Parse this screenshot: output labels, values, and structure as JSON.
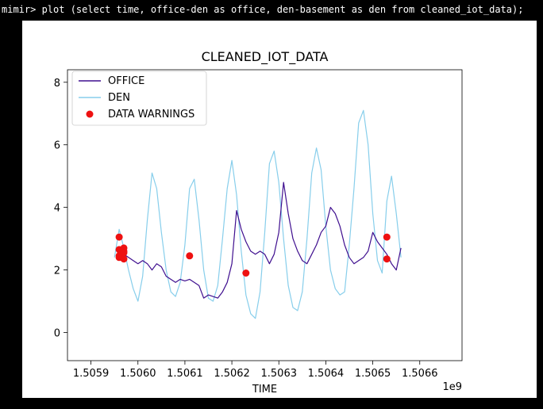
{
  "terminal": {
    "command_line": "mimir> plot (select time, office-den as office, den-basement as den from cleaned_iot_data);"
  },
  "colors": {
    "office": "#3f0f8f",
    "den": "#87ceeb",
    "warnings": "#ee1111",
    "terminal_bg": "#000000",
    "terminal_fg": "#ffffff"
  },
  "chart_data": {
    "type": "line",
    "title": "CLEANED_IOT_DATA",
    "xlabel": "TIME",
    "ylabel": "",
    "x_offset_label": "1e9",
    "xlim": [
      1.50585,
      1.50669
    ],
    "ylim": [
      -0.9,
      8.4
    ],
    "xticks": [
      "1.5059",
      "1.5060",
      "1.5061",
      "1.5062",
      "1.5063",
      "1.5064",
      "1.5065",
      "1.5066"
    ],
    "xtick_values": [
      1.5059,
      1.506,
      1.5061,
      1.5062,
      1.5063,
      1.5064,
      1.5065,
      1.5066
    ],
    "yticks": [
      "0",
      "2",
      "4",
      "6",
      "8"
    ],
    "ytick_values": [
      0,
      2,
      4,
      6,
      8
    ],
    "grid": false,
    "legend_position": "top-left",
    "series": [
      {
        "name": "OFFICE",
        "kind": "line",
        "x": [
          1.50596,
          1.50597,
          1.50598,
          1.50599,
          1.506,
          1.50601,
          1.50602,
          1.50603,
          1.50604,
          1.50605,
          1.50606,
          1.50607,
          1.50608,
          1.50609,
          1.5061,
          1.50611,
          1.50612,
          1.50613,
          1.50614,
          1.50615,
          1.50616,
          1.50617,
          1.50618,
          1.50619,
          1.5062,
          1.50621,
          1.50622,
          1.50623,
          1.50624,
          1.50625,
          1.50626,
          1.50627,
          1.50628,
          1.50629,
          1.5063,
          1.50631,
          1.50632,
          1.50633,
          1.50634,
          1.50635,
          1.50636,
          1.50637,
          1.50638,
          1.50639,
          1.5064,
          1.50641,
          1.50642,
          1.50643,
          1.50644,
          1.50645,
          1.50646,
          1.50647,
          1.50648,
          1.50649,
          1.5065,
          1.50651,
          1.50652,
          1.50653,
          1.50654,
          1.50655,
          1.50656
        ],
        "y": [
          2.7,
          2.5,
          2.4,
          2.3,
          2.2,
          2.3,
          2.2,
          2.0,
          2.2,
          2.1,
          1.8,
          1.7,
          1.6,
          1.7,
          1.65,
          1.7,
          1.6,
          1.5,
          1.1,
          1.2,
          1.15,
          1.1,
          1.3,
          1.6,
          2.2,
          3.9,
          3.3,
          2.9,
          2.6,
          2.5,
          2.6,
          2.5,
          2.2,
          2.5,
          3.2,
          4.8,
          3.8,
          3.0,
          2.6,
          2.3,
          2.2,
          2.5,
          2.8,
          3.2,
          3.4,
          4.0,
          3.8,
          3.4,
          2.8,
          2.4,
          2.2,
          2.3,
          2.4,
          2.6,
          3.2,
          2.9,
          2.7,
          2.5,
          2.2,
          2.0,
          2.7
        ]
      },
      {
        "name": "DEN",
        "kind": "line",
        "x": [
          1.50595,
          1.50596,
          1.50597,
          1.50598,
          1.50599,
          1.506,
          1.50601,
          1.50602,
          1.50603,
          1.50604,
          1.50605,
          1.50606,
          1.50607,
          1.50608,
          1.50609,
          1.5061,
          1.50611,
          1.50612,
          1.50613,
          1.50614,
          1.50615,
          1.50616,
          1.50617,
          1.50618,
          1.50619,
          1.5062,
          1.50621,
          1.50622,
          1.50623,
          1.50624,
          1.50625,
          1.50626,
          1.50627,
          1.50628,
          1.50629,
          1.5063,
          1.50631,
          1.50632,
          1.50633,
          1.50634,
          1.50635,
          1.50636,
          1.50637,
          1.50638,
          1.50639,
          1.5064,
          1.50641,
          1.50642,
          1.50643,
          1.50644,
          1.50645,
          1.50646,
          1.50647,
          1.50648,
          1.50649,
          1.5065,
          1.50651,
          1.50652,
          1.50653,
          1.50654,
          1.50655,
          1.50656
        ],
        "y": [
          2.4,
          3.3,
          2.7,
          2.0,
          1.4,
          1.0,
          1.8,
          3.6,
          5.1,
          4.6,
          3.2,
          2.0,
          1.3,
          1.15,
          1.6,
          2.8,
          4.6,
          4.9,
          3.6,
          2.0,
          1.1,
          1.0,
          1.5,
          3.0,
          4.6,
          5.5,
          4.4,
          2.6,
          1.2,
          0.6,
          0.45,
          1.3,
          3.2,
          5.4,
          5.8,
          4.8,
          3.0,
          1.5,
          0.8,
          0.7,
          1.3,
          3.0,
          5.1,
          5.9,
          5.2,
          3.4,
          2.0,
          1.4,
          1.2,
          1.3,
          2.8,
          4.6,
          6.7,
          7.1,
          6.0,
          3.8,
          2.3,
          1.9,
          4.2,
          5.0,
          3.8,
          2.4
        ]
      },
      {
        "name": "DATA WARNINGS",
        "kind": "scatter",
        "x": [
          1.50596,
          1.50596,
          1.50596,
          1.50596,
          1.50597,
          1.50597,
          1.50597,
          1.50597,
          1.50611,
          1.50623,
          1.50653,
          1.50653
        ],
        "y": [
          3.05,
          2.45,
          2.65,
          2.4,
          2.6,
          2.7,
          2.55,
          2.35,
          2.45,
          1.9,
          3.05,
          2.35
        ]
      }
    ]
  }
}
